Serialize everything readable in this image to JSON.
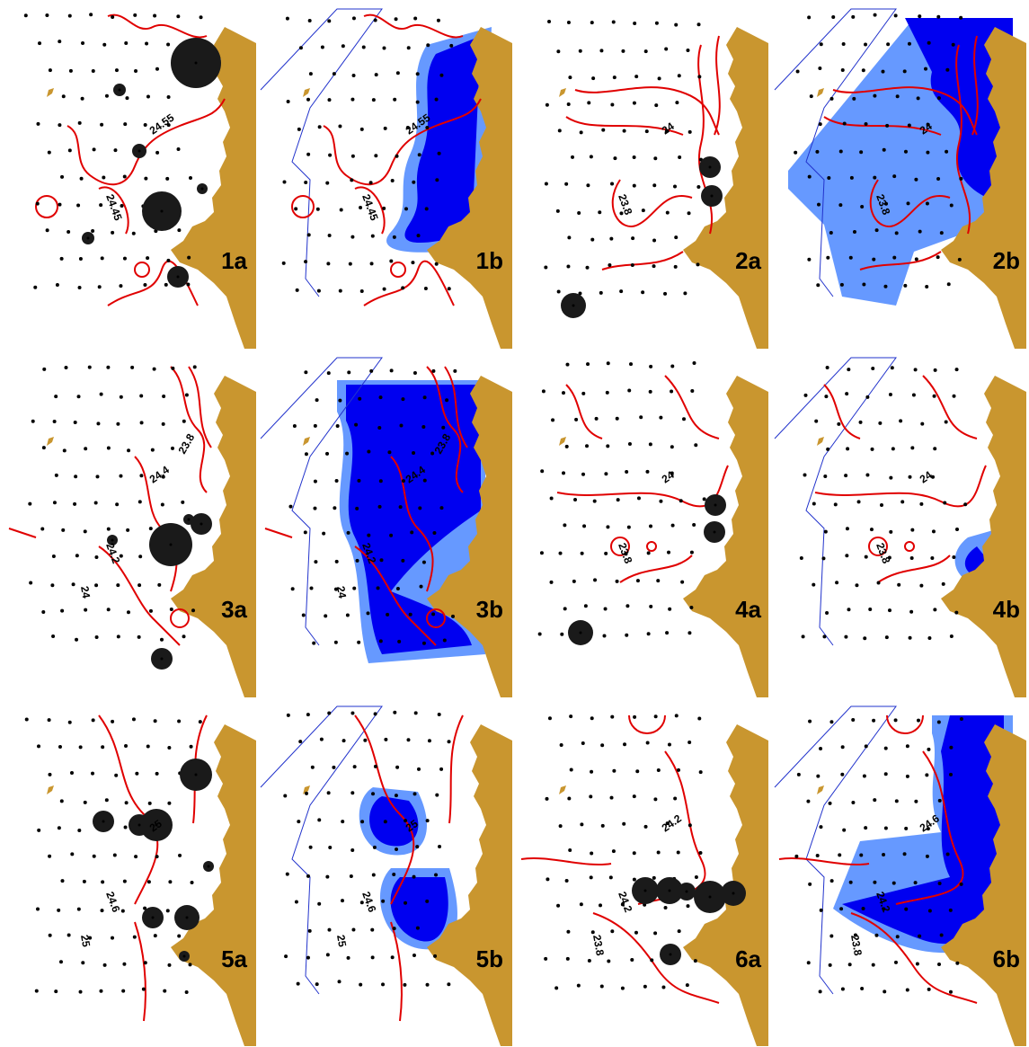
{
  "colors": {
    "land": "#c9962f",
    "contour": "#e00000",
    "dot": "#000000",
    "bubble": "#1a1a1a",
    "dark_blue": "#0000f0",
    "light_blue": "#6699ff",
    "survey_outline": "#2233cc"
  },
  "panels": [
    {
      "label": "1a",
      "kind": "a",
      "contour_labels": [
        "24.55",
        "24.45"
      ]
    },
    {
      "label": "1b",
      "kind": "b",
      "contour_labels": [
        "24.55",
        "24.45"
      ]
    },
    {
      "label": "2a",
      "kind": "a",
      "contour_labels": [
        "24",
        "23.8"
      ]
    },
    {
      "label": "2b",
      "kind": "b",
      "contour_labels": [
        "24",
        "23.8"
      ]
    },
    {
      "label": "3a",
      "kind": "a",
      "contour_labels": [
        "24.4",
        "24.2",
        "24",
        "23.8"
      ]
    },
    {
      "label": "3b",
      "kind": "b",
      "contour_labels": [
        "24.4",
        "24.2",
        "24",
        "23.8"
      ]
    },
    {
      "label": "4a",
      "kind": "a",
      "contour_labels": [
        "24",
        "23.8"
      ]
    },
    {
      "label": "4b",
      "kind": "b",
      "contour_labels": [
        "24",
        "23.8"
      ]
    },
    {
      "label": "5a",
      "kind": "a",
      "contour_labels": [
        "25",
        "24.6",
        "25"
      ]
    },
    {
      "label": "5b",
      "kind": "b",
      "contour_labels": [
        "25",
        "24.6",
        "25"
      ]
    },
    {
      "label": "6a",
      "kind": "a",
      "contour_labels": [
        "24.2",
        "24.2",
        "23.8"
      ]
    },
    {
      "label": "6b",
      "kind": "b",
      "contour_labels": [
        "24.6",
        "24.2",
        "23.8"
      ]
    }
  ]
}
